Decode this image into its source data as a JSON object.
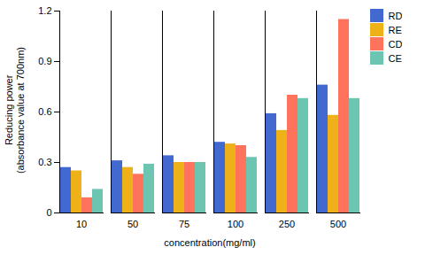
{
  "chart_data": {
    "type": "bar",
    "xlabel": "concentration(mg/ml)",
    "ylabel": "Reducing power\n(absorbance value at 700nm)",
    "categories": [
      10,
      50,
      75,
      100,
      250,
      500
    ],
    "series": [
      {
        "name": "RD",
        "values": [
          0.27,
          0.31,
          0.34,
          0.42,
          0.59,
          0.76
        ]
      },
      {
        "name": "RE",
        "values": [
          0.25,
          0.27,
          0.3,
          0.41,
          0.49,
          0.58
        ]
      },
      {
        "name": "CD",
        "values": [
          0.09,
          0.23,
          0.3,
          0.4,
          0.7,
          1.15
        ]
      },
      {
        "name": "CE",
        "values": [
          0.14,
          0.29,
          0.3,
          0.33,
          0.68,
          0.68
        ]
      }
    ],
    "ylim": [
      0,
      1.2
    ],
    "yticks": [
      0,
      0.3,
      0.6,
      0.9,
      1.2
    ],
    "legend": "right"
  }
}
